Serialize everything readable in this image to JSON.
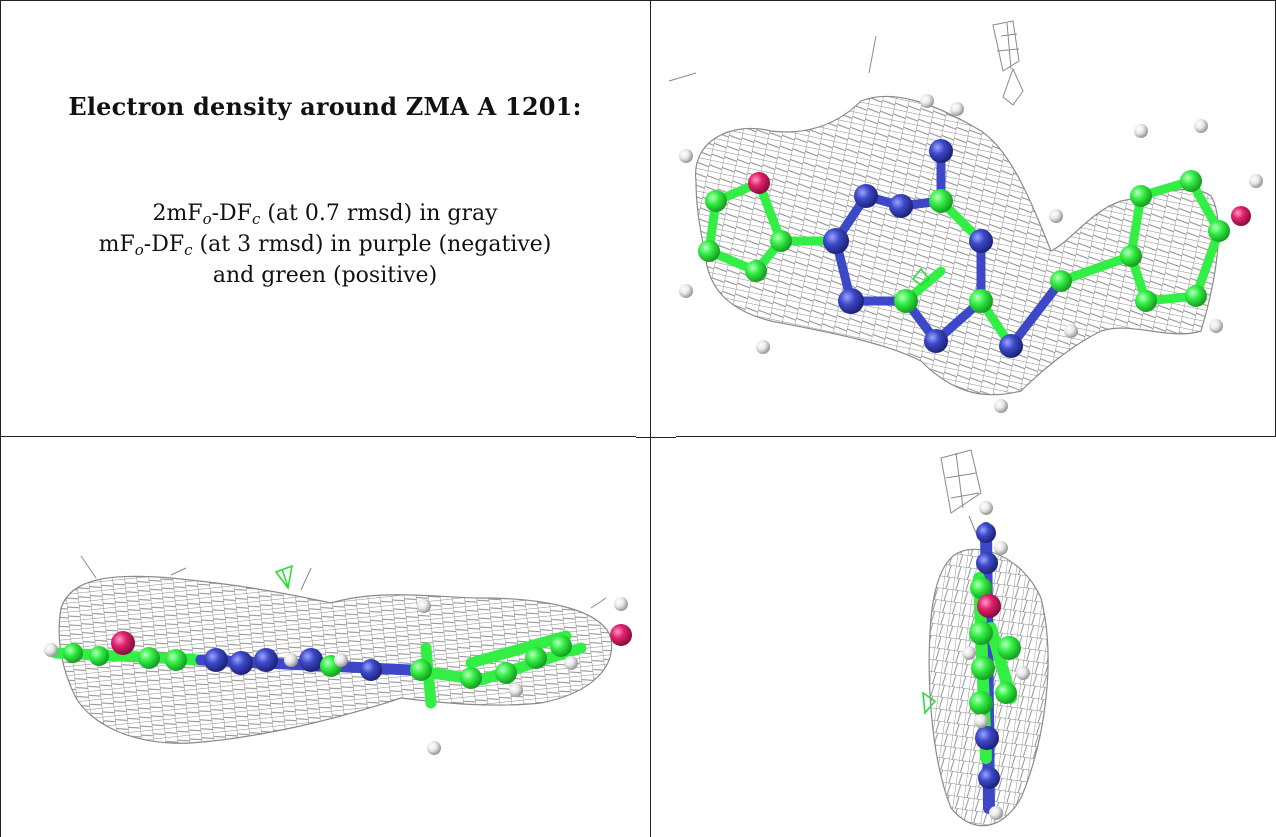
{
  "caption": {
    "title": "Electron density around ZMA A 1201:",
    "line1": {
      "pre": "2mF",
      "sub1": "o",
      "mid": "-DF",
      "sub2": "c",
      "post": " (at 0.7 rmsd) in gray"
    },
    "line2": {
      "pre": "mF",
      "sub1": "o",
      "mid": "-DF",
      "sub2": "c",
      "post": " (at 3 rmsd) in purple (negative)"
    },
    "line3": "and green (positive)"
  },
  "colors": {
    "mesh": "#8a8a8a",
    "carbon": "#33ee44",
    "nitrogen": "#3c48c8",
    "oxygen": "#e0206a",
    "hydrogen": "#e8e8e8",
    "difference_positive": "#22dd33"
  },
  "panels": [
    {
      "view": "front"
    },
    {
      "view": "edge-on"
    },
    {
      "view": "end-on"
    }
  ]
}
